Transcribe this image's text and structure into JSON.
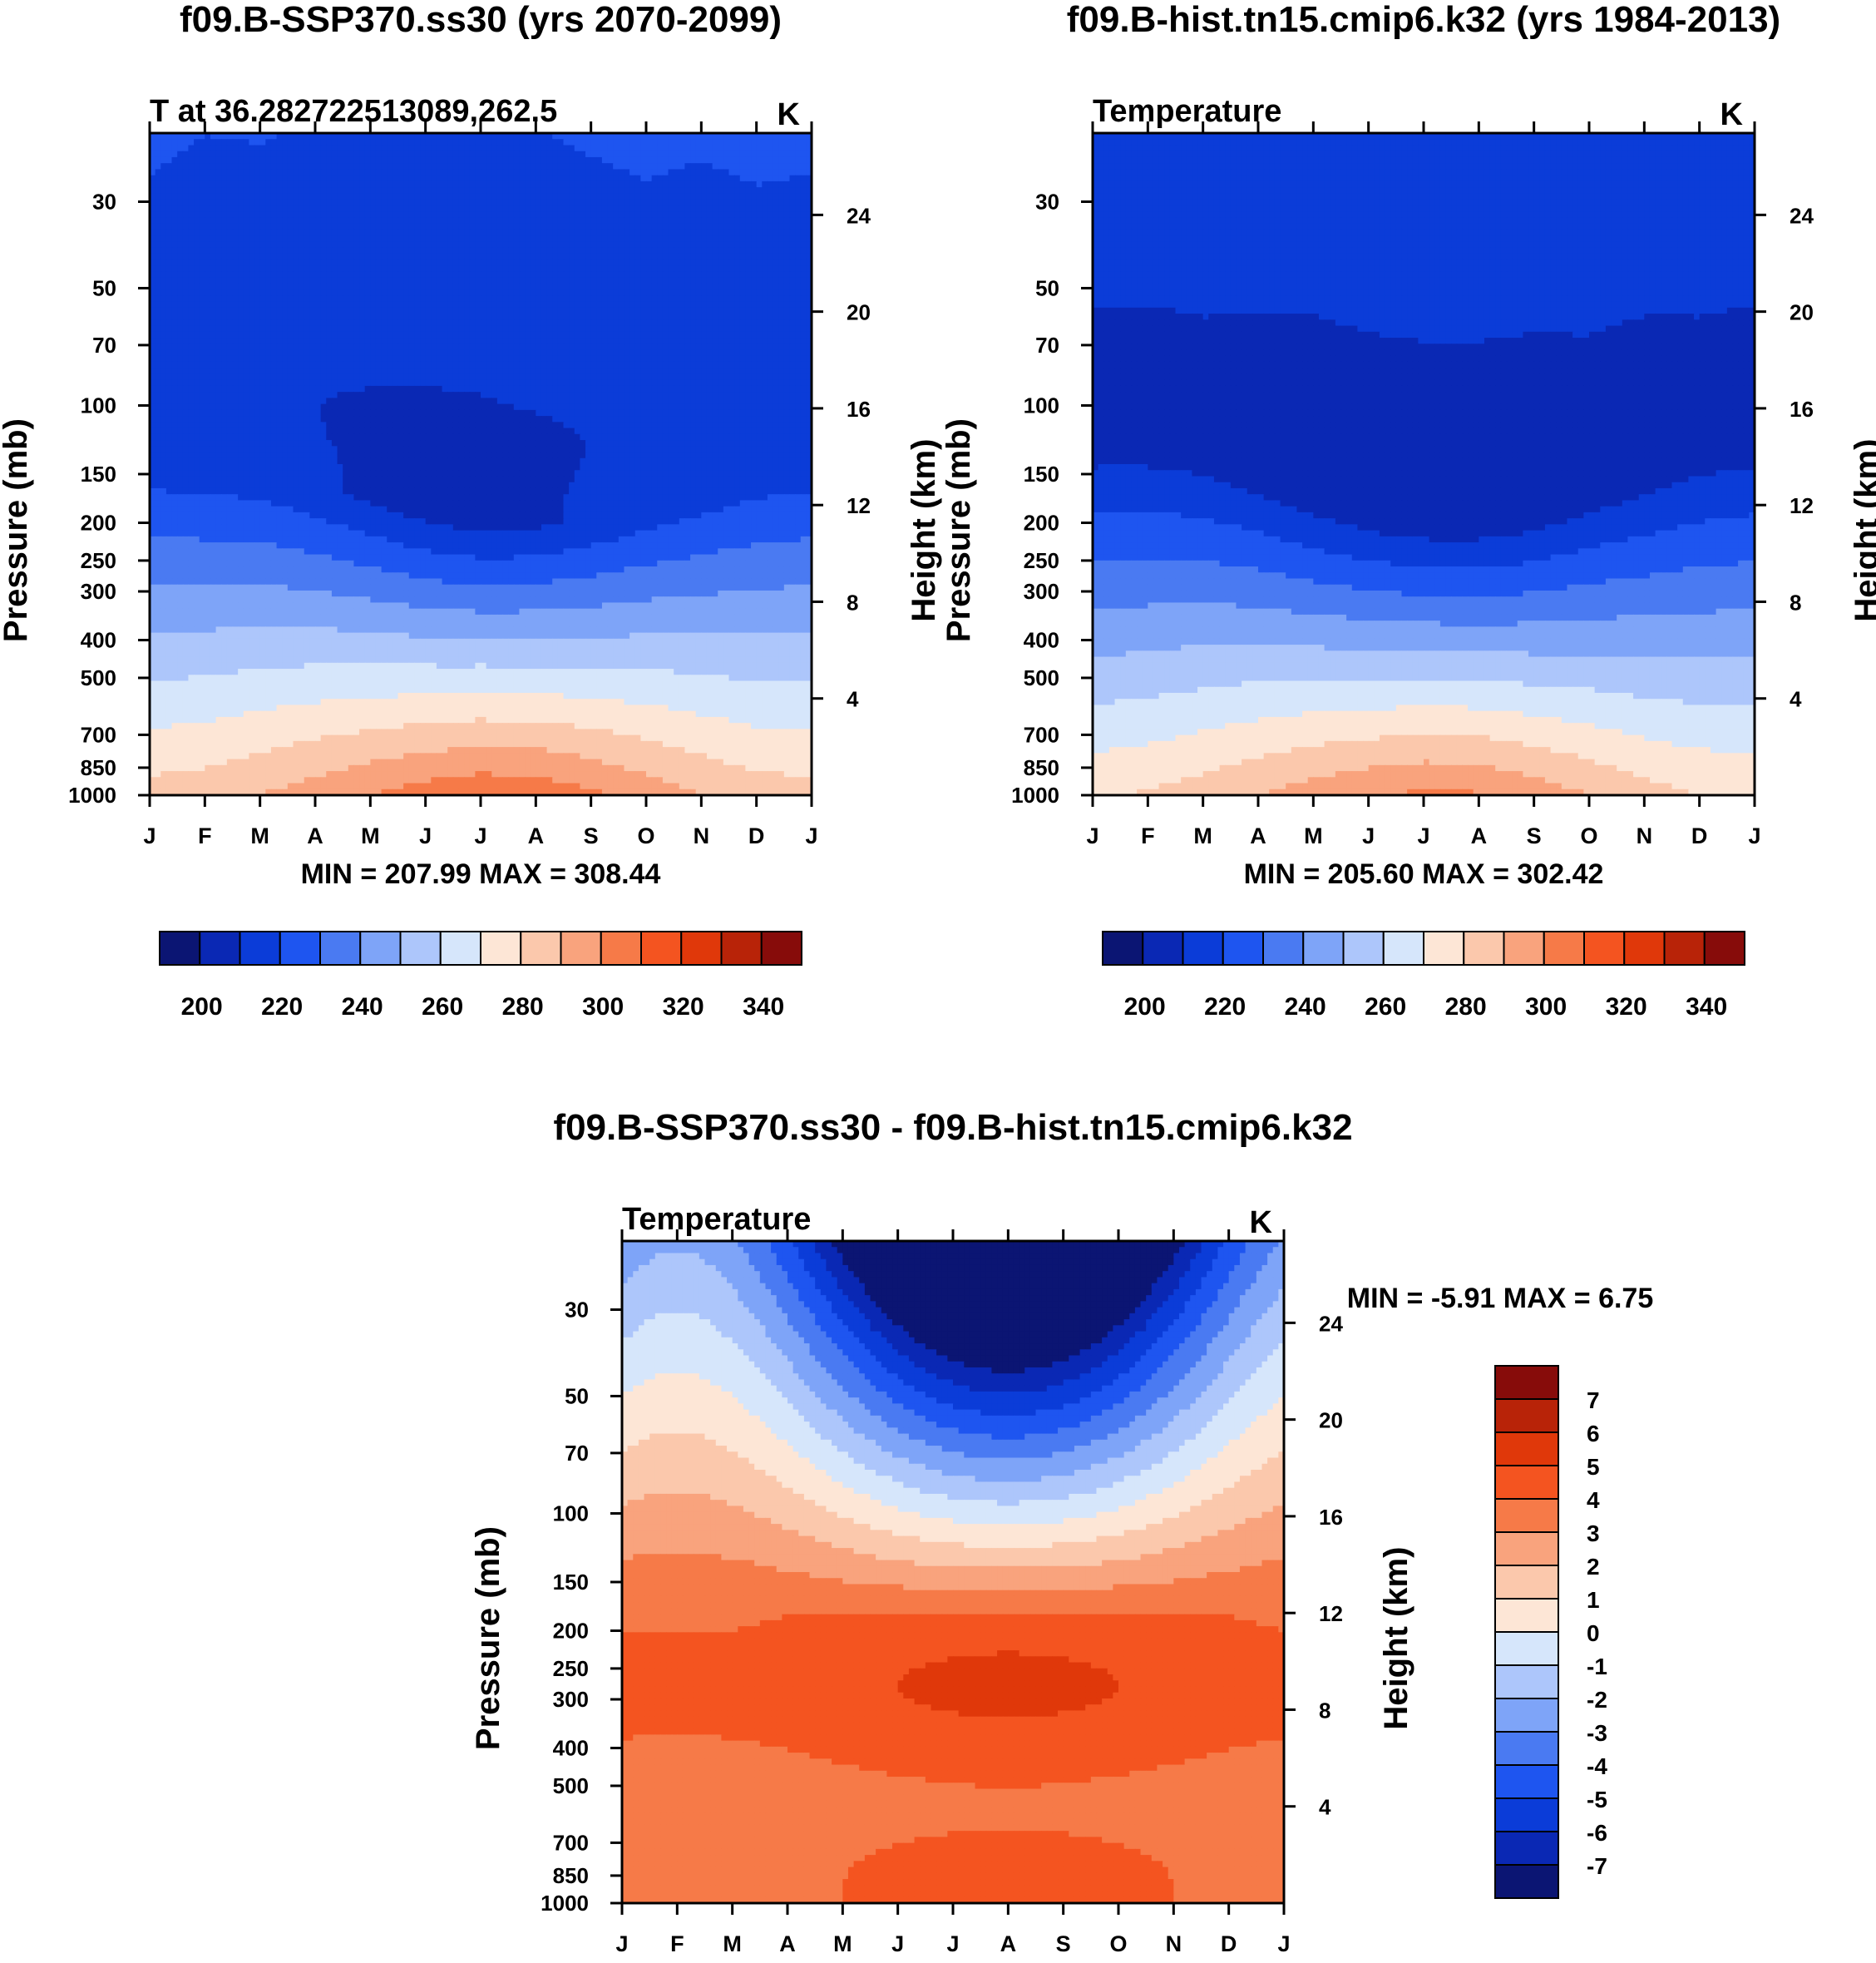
{
  "colors": {
    "abs_scale": [
      "#0b1573",
      "#0a28b4",
      "#0b3cd8",
      "#1e55f0",
      "#4a7af2",
      "#7ea4f8",
      "#adc6fb",
      "#d6e6fb",
      "#fde6d6",
      "#fbc8ac",
      "#f9a37d",
      "#f67a48",
      "#f45420",
      "#e0380a",
      "#b82308",
      "#870c0a"
    ],
    "diff_scale": [
      "#0b1573",
      "#0a28b4",
      "#0b3cd8",
      "#1e55f0",
      "#4a7af2",
      "#7ea4f8",
      "#adc6fb",
      "#d6e6fb",
      "#fde6d6",
      "#fbc8ac",
      "#f9a37d",
      "#f67a48",
      "#f45420",
      "#e0380a",
      "#b82308",
      "#870c0a"
    ]
  },
  "chart_data": [
    {
      "type": "heatmap",
      "title": "f09.B-SSP370.ss30 (yrs 2070-2099)",
      "subtitle_left": "T at 36.282722513089,262.5",
      "units": "K",
      "ylabel": "Pressure (mb)",
      "ylabel_right": "Height (km)",
      "x_ticks": [
        "J",
        "F",
        "M",
        "A",
        "M",
        "J",
        "J",
        "A",
        "S",
        "O",
        "N",
        "D",
        "J"
      ],
      "y_ticks": [
        "30",
        "50",
        "70",
        "100",
        "150",
        "200",
        "250",
        "300",
        "400",
        "500",
        "700",
        "850",
        "1000"
      ],
      "y_right_ticks": [
        "24",
        "20",
        "16",
        "12",
        "8",
        "4"
      ],
      "stats_text": "MIN = 207.99 MAX = 308.44",
      "colorbar_labels": [
        "200",
        "220",
        "240",
        "260",
        "280",
        "300",
        "320",
        "340"
      ],
      "min": 207.99,
      "max": 308.44,
      "surface_temp_by_month": [
        284,
        286,
        290,
        295,
        300,
        305,
        308,
        307,
        302,
        296,
        290,
        285,
        284
      ],
      "tropopause_min_by_month": [
        213,
        212,
        212,
        211,
        210,
        209,
        209,
        210,
        211,
        212,
        212,
        213,
        213
      ]
    },
    {
      "type": "heatmap",
      "title": "f09.B-hist.tn15.cmip6.k32 (yrs 1984-2013)",
      "subtitle_left": "Temperature",
      "units": "K",
      "ylabel": "Pressure (mb)",
      "ylabel_right": "Height (km)",
      "x_ticks": [
        "J",
        "F",
        "M",
        "A",
        "M",
        "J",
        "J",
        "A",
        "S",
        "O",
        "N",
        "D",
        "J"
      ],
      "y_ticks": [
        "30",
        "50",
        "70",
        "100",
        "150",
        "200",
        "250",
        "300",
        "400",
        "500",
        "700",
        "850",
        "1000"
      ],
      "y_right_ticks": [
        "24",
        "20",
        "16",
        "12",
        "8",
        "4"
      ],
      "stats_text": "MIN = 205.60 MAX = 302.42",
      "colorbar_labels": [
        "200",
        "220",
        "240",
        "260",
        "280",
        "300",
        "320",
        "340"
      ],
      "min": 205.6,
      "max": 302.42,
      "surface_temp_by_month": [
        279,
        281,
        285,
        290,
        295,
        299,
        302,
        301,
        296,
        290,
        284,
        280,
        279
      ],
      "tropopause_min_by_month": [
        208,
        208,
        208,
        207,
        206,
        206,
        206,
        206,
        206,
        207,
        207,
        208,
        208
      ]
    },
    {
      "type": "heatmap",
      "title": "f09.B-SSP370.ss30 - f09.B-hist.tn15.cmip6.k32",
      "subtitle_left": "Temperature",
      "units": "K",
      "ylabel": "Pressure (mb)",
      "ylabel_right": "Height (km)",
      "x_ticks": [
        "J",
        "F",
        "M",
        "A",
        "M",
        "J",
        "J",
        "A",
        "S",
        "O",
        "N",
        "D",
        "J"
      ],
      "y_ticks": [
        "30",
        "50",
        "70",
        "100",
        "150",
        "200",
        "250",
        "300",
        "400",
        "500",
        "700",
        "850",
        "1000"
      ],
      "y_right_ticks": [
        "24",
        "20",
        "16",
        "12",
        "8",
        "4"
      ],
      "stats_text": "MIN =  -5.91 MAX =    6.75",
      "colorbar_labels": [
        "7",
        "6",
        "5",
        "4",
        "3",
        "2",
        "1",
        "0",
        "-1",
        "-2",
        "-3",
        "-4",
        "-5",
        "-6",
        "-7"
      ],
      "min": -5.91,
      "max": 6.75
    }
  ]
}
